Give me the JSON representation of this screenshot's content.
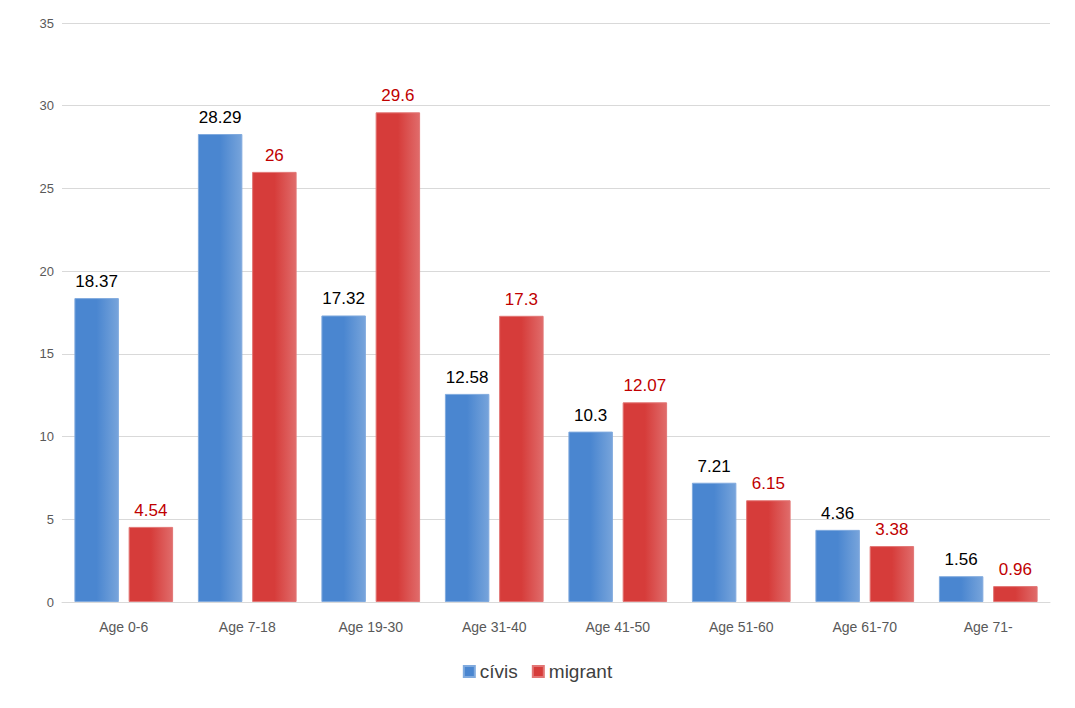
{
  "chart_data": {
    "type": "bar",
    "categories": [
      "Age 0-6",
      "Age 7-18",
      "Age 19-30",
      "Age 31-40",
      "Age 41-50",
      "Age 51-60",
      "Age 61-70",
      "Age 71-"
    ],
    "series": [
      {
        "name": "cívis",
        "color": "#4a86d0",
        "values": [
          18.37,
          28.29,
          17.32,
          12.58,
          10.3,
          7.21,
          4.36,
          1.56
        ]
      },
      {
        "name": "migrant",
        "color": "#d63c3a",
        "values": [
          4.54,
          26,
          29.6,
          17.3,
          12.07,
          6.15,
          3.38,
          0.96
        ]
      }
    ],
    "ylim": [
      0,
      35
    ],
    "yticks": [
      0,
      5,
      10,
      15,
      20,
      25,
      30,
      35
    ],
    "grid": true,
    "legend": "bottom",
    "data_labels": true
  }
}
